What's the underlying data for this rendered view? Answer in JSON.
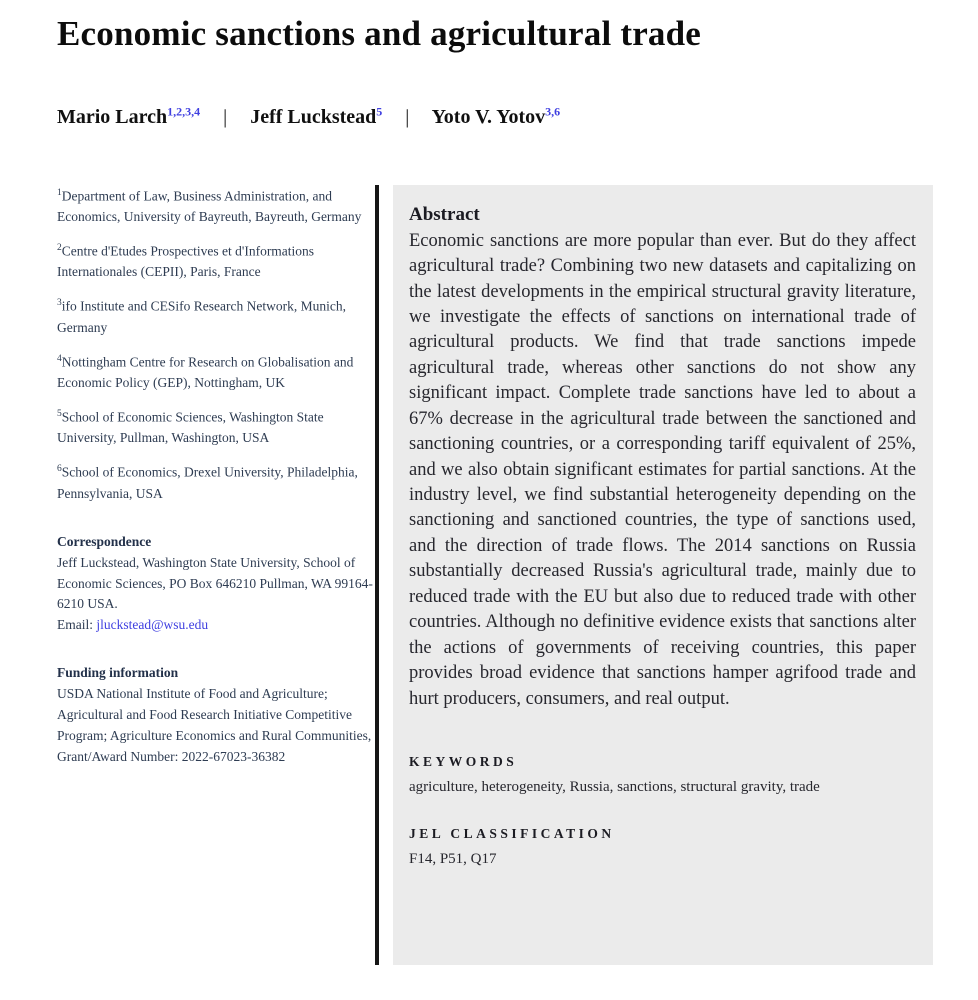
{
  "title": "Economic sanctions and agricultural trade",
  "authors": [
    {
      "name": "Mario Larch",
      "superscript": "1,2,3,4"
    },
    {
      "name": "Jeff Luckstead",
      "superscript": "5"
    },
    {
      "name": "Yoto V. Yotov",
      "superscript": "3,6"
    }
  ],
  "author_separator": "|",
  "affiliations": [
    {
      "marker": "1",
      "text": "Department of Law, Business Administration, and Economics, University of Bayreuth, Bayreuth, Germany"
    },
    {
      "marker": "2",
      "text": "Centre d'Etudes Prospectives et d'Informations Internationales (CEPII), Paris, France"
    },
    {
      "marker": "3",
      "text": "ifo Institute and CESifo Research Network, Munich, Germany"
    },
    {
      "marker": "4",
      "text": "Nottingham Centre for Research on Globalisation and Economic Policy (GEP), Nottingham, UK"
    },
    {
      "marker": "5",
      "text": "School of Economic Sciences, Washington State University, Pullman, Washington, USA"
    },
    {
      "marker": "6",
      "text": "School of Economics, Drexel University, Philadelphia, Pennsylvania, USA"
    }
  ],
  "correspondence": {
    "heading": "Correspondence",
    "body": "Jeff Luckstead, Washington State University, School of Economic Sciences, PO Box 646210 Pullman, WA 99164-6210 USA.",
    "email_label": "Email: ",
    "email": "jluckstead@wsu.edu"
  },
  "funding": {
    "heading": "Funding information",
    "body": "USDA National Institute of Food and Agriculture; Agricultural and Food Research Initiative Competitive Program; Agriculture Economics and Rural Communities, Grant/Award Number: 2022-67023-36382"
  },
  "abstract": {
    "heading": "Abstract",
    "body": "Economic sanctions are more popular than ever. But do they affect agricultural trade? Combining two new datasets and capitalizing on the latest developments in the empirical structural gravity literature, we investigate the effects of sanctions on international trade of agricultural products. We find that trade sanctions impede agricultural trade, whereas other sanctions do not show any significant impact. Complete trade sanctions have led to about a 67% decrease in the agricultural trade between the sanctioned and sanctioning countries, or a corresponding tariff equivalent of 25%, and we also obtain significant estimates for partial sanctions. At the industry level, we find substantial heterogeneity depending on the sanctioning and sanctioned countries, the type of sanctions used, and the direction of trade flows. The 2014 sanctions on Russia substantially decreased Russia's agricultural trade, mainly due to reduced trade with the EU but also due to reduced trade with other countries. Although no definitive evidence exists that sanctions alter the actions of governments of receiving countries, this paper provides broad evidence that sanctions hamper agrifood trade and hurt producers, consumers, and real output."
  },
  "keywords": {
    "heading": "KEYWORDS",
    "body": "agriculture, heterogeneity, Russia, sanctions, structural gravity, trade"
  },
  "jel": {
    "heading": "JEL CLASSIFICATION",
    "body": "F14, P51, Q17"
  },
  "colors": {
    "accent_link": "#4040e0",
    "abstract_background": "#ebebeb",
    "divider": "#161616"
  }
}
